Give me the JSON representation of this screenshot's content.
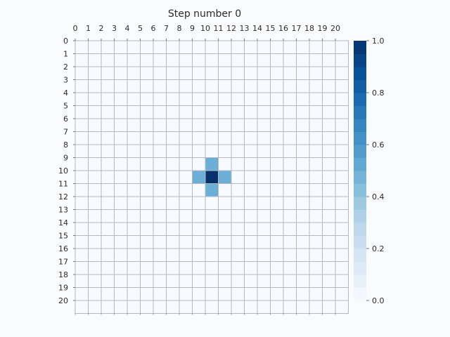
{
  "chart_data": {
    "type": "heatmap",
    "title": "Step number 0",
    "x_ticks": [
      "0",
      "1",
      "2",
      "3",
      "4",
      "5",
      "6",
      "7",
      "8",
      "9",
      "10",
      "11",
      "12",
      "13",
      "14",
      "15",
      "16",
      "17",
      "18",
      "19",
      "20"
    ],
    "y_ticks": [
      "0",
      "1",
      "2",
      "3",
      "4",
      "5",
      "6",
      "7",
      "8",
      "9",
      "10",
      "11",
      "12",
      "13",
      "14",
      "15",
      "16",
      "17",
      "18",
      "19",
      "20"
    ],
    "x_tick_position": "top",
    "grid": true,
    "grid_color": "#b4b9be",
    "cells": [
      {
        "row": 9,
        "col": 10,
        "value": 0.5
      },
      {
        "row": 10,
        "col": 9,
        "value": 0.5
      },
      {
        "row": 10,
        "col": 10,
        "value": 1.0
      },
      {
        "row": 10,
        "col": 11,
        "value": 0.5
      },
      {
        "row": 11,
        "col": 10,
        "value": 0.5
      }
    ],
    "default_value": 0.0,
    "vmin": 0.0,
    "vmax": 1.0,
    "colormap": "Blues",
    "colorbar": {
      "ticks": [
        "0.0",
        "0.2",
        "0.4",
        "0.6",
        "0.8",
        "1.0"
      ],
      "levels": 20,
      "location": "right"
    }
  }
}
